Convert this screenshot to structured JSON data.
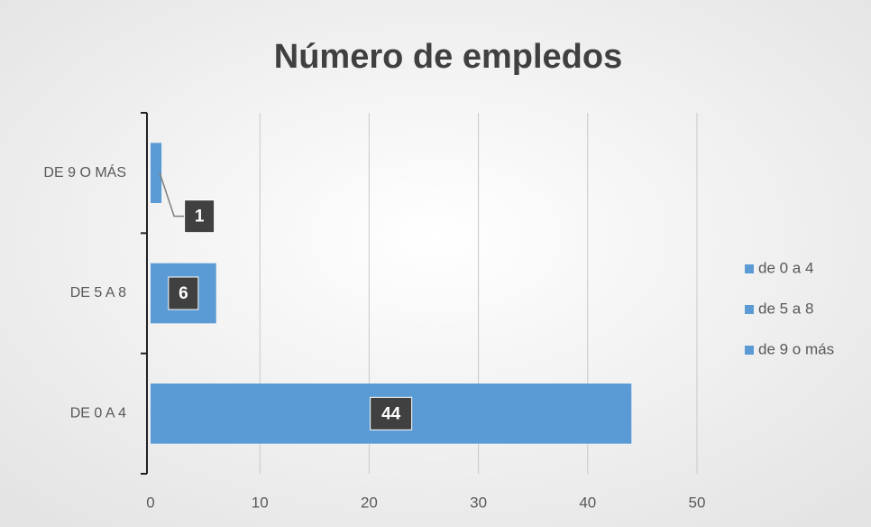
{
  "chart_data": {
    "type": "barh",
    "title": "Número de empledos",
    "categories": [
      "DE 0 A 4",
      "DE 5 A 8",
      "DE 9 O MÁS"
    ],
    "values": [
      44,
      6,
      1
    ],
    "color": "#5b9bd5",
    "legend": [
      "de 0 a 4",
      "de 5 a 8",
      "de 9 o más"
    ],
    "xlim": [
      0,
      50
    ],
    "xticks": [
      0,
      10,
      20,
      30,
      40,
      50
    ],
    "grid": true
  }
}
